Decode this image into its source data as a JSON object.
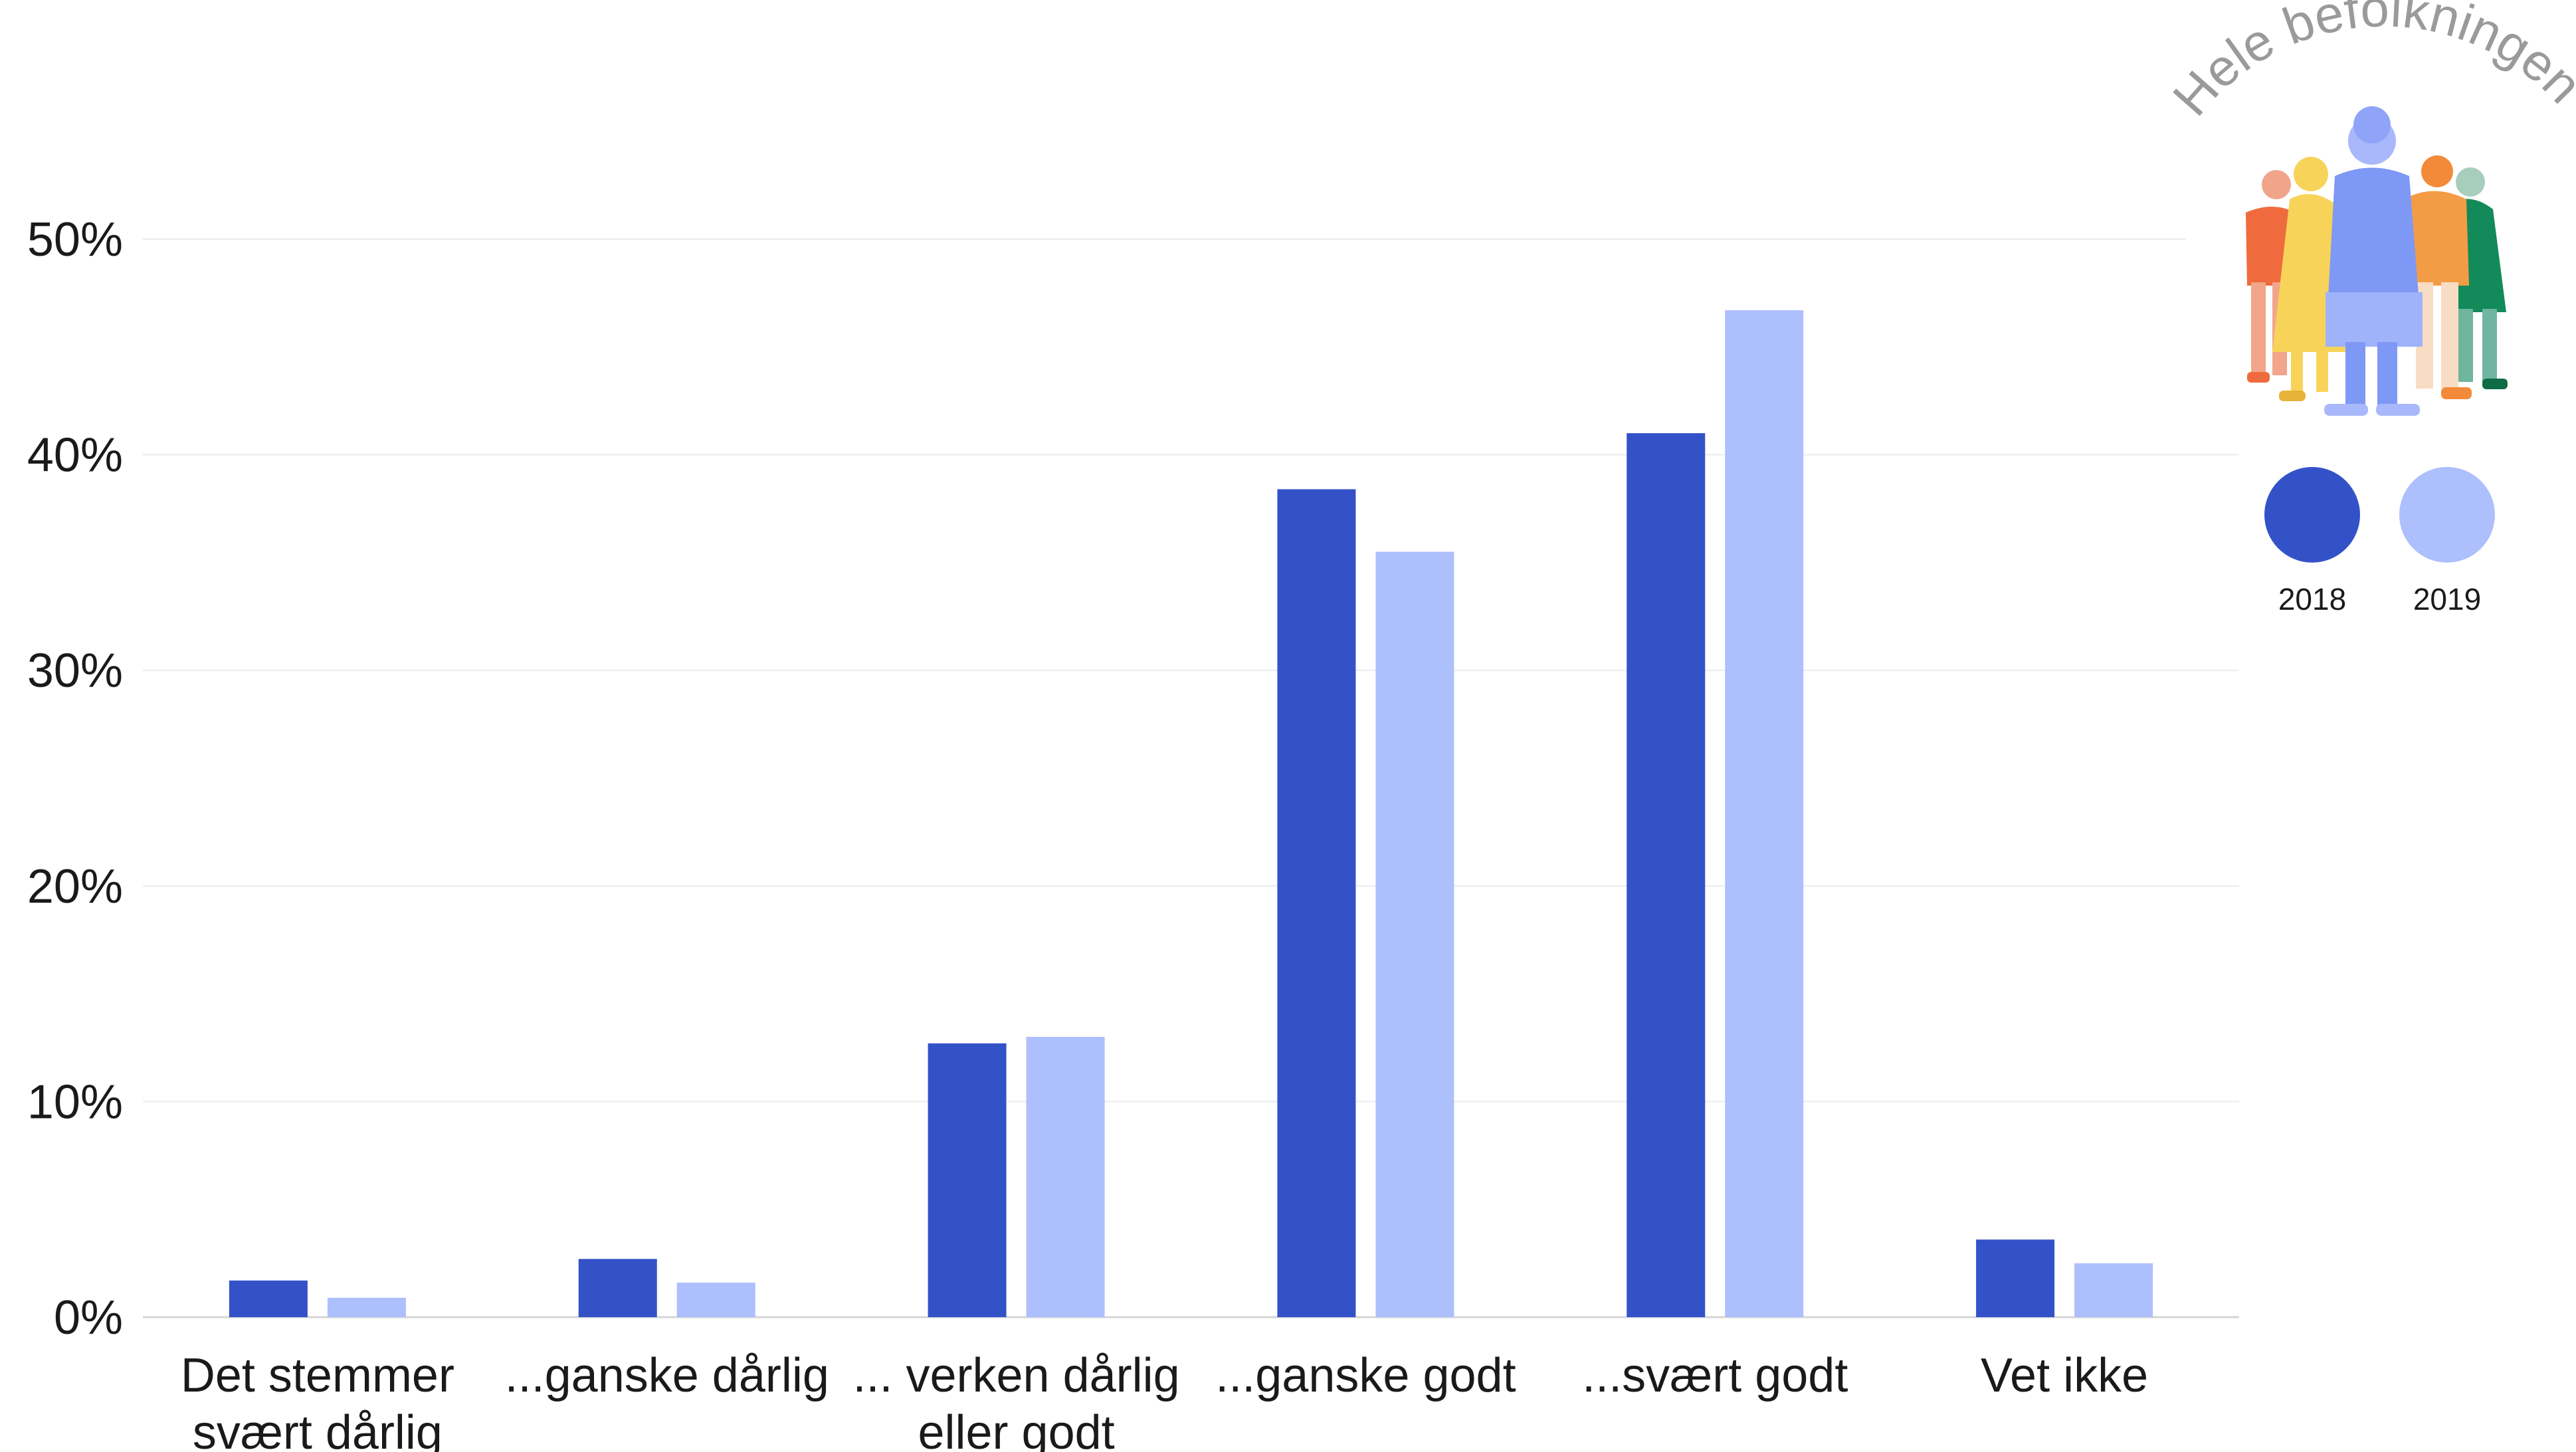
{
  "chart_data": {
    "type": "bar",
    "title": "",
    "xlabel": "",
    "ylabel": "",
    "ylim": [
      0,
      50
    ],
    "y_ticks": [
      "0%",
      "10%",
      "20%",
      "30%",
      "40%",
      "50%"
    ],
    "y_tick_values": [
      0,
      10,
      20,
      30,
      40,
      50
    ],
    "grid": true,
    "categories": [
      [
        "Det stemmer",
        "svært dårlig"
      ],
      [
        "...ganske dårlig"
      ],
      [
        "... verken dårlig",
        "eller godt"
      ],
      [
        "...ganske godt"
      ],
      [
        "...svært godt"
      ],
      [
        "Vet ikke"
      ]
    ],
    "series": [
      {
        "name": "2018",
        "color": "#3452c8",
        "values": [
          1.7,
          2.7,
          12.7,
          38.4,
          41.0,
          3.6
        ]
      },
      {
        "name": "2019",
        "color": "#adbffc",
        "values": [
          0.9,
          1.6,
          13.0,
          35.5,
          46.7,
          2.5
        ]
      }
    ],
    "legend_position": "top-right"
  },
  "badge": {
    "title": "Hele befolkningen",
    "icon": "people-group-illustration"
  }
}
